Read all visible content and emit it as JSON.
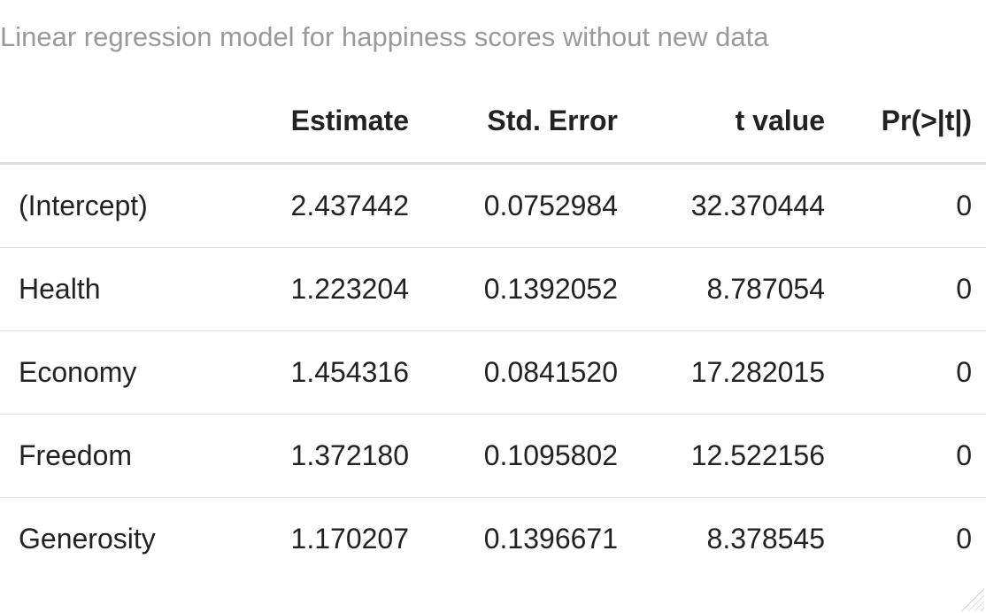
{
  "caption": "Linear regression model for happiness scores without new data",
  "table": {
    "headers": [
      "",
      "Estimate",
      "Std. Error",
      "t value",
      "Pr(>|t|)"
    ],
    "rows": [
      [
        "(Intercept)",
        "2.437442",
        "0.0752984",
        "32.370444",
        "0"
      ],
      [
        "Health",
        "1.223204",
        "0.1392052",
        "8.787054",
        "0"
      ],
      [
        "Economy",
        "1.454316",
        "0.0841520",
        "17.282015",
        "0"
      ],
      [
        "Freedom",
        "1.372180",
        "0.1095802",
        "12.522156",
        "0"
      ],
      [
        "Generosity",
        "1.170207",
        "0.1396671",
        "8.378545",
        "0"
      ]
    ]
  }
}
